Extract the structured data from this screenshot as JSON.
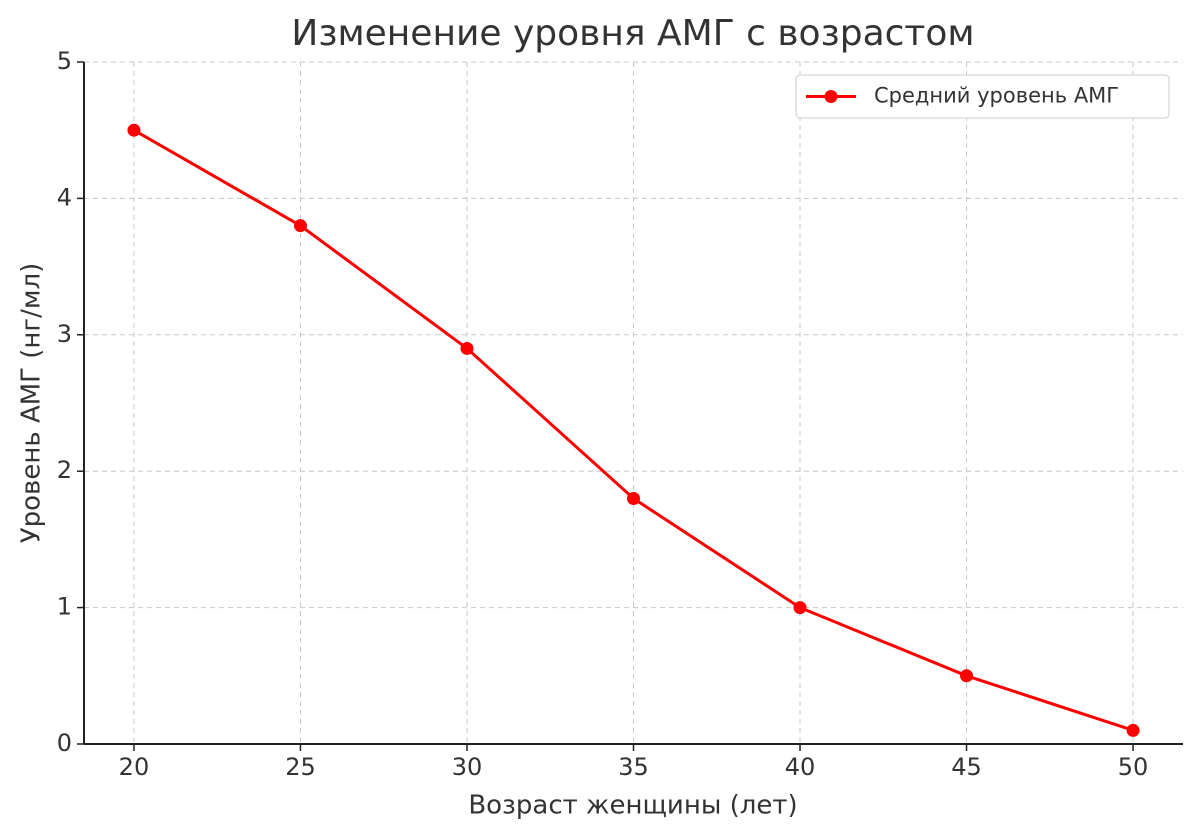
{
  "chart_data": {
    "type": "line",
    "title": "Изменение уровня АМГ с возрастом",
    "x_label": "Возраст женщины (лет)",
    "y_label": "Уровень АМГ (нг/мл)",
    "x": [
      20,
      25,
      30,
      35,
      40,
      45,
      50
    ],
    "series": [
      {
        "name": "Средний уровень АМГ",
        "color": "#ff0000",
        "values": [
          4.5,
          3.8,
          2.9,
          1.8,
          1.0,
          0.5,
          0.1
        ]
      }
    ],
    "xlim": [
      18.5,
      51.5
    ],
    "xticks": [
      20,
      25,
      30,
      35,
      40,
      45,
      50
    ],
    "ylim": [
      0,
      5
    ],
    "yticks": [
      0,
      1,
      2,
      3,
      4,
      5
    ],
    "grid": true,
    "legend": "upper right"
  }
}
